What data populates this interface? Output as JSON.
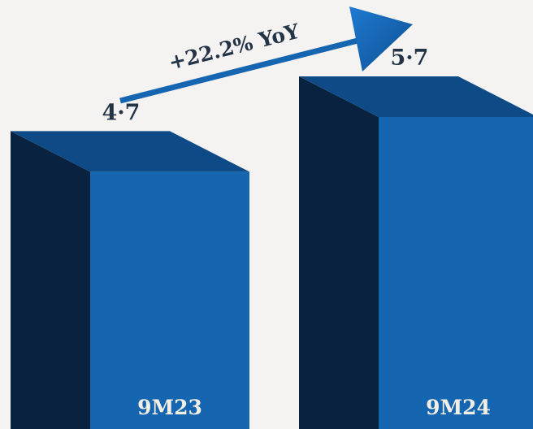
{
  "chart_data": {
    "type": "bar",
    "categories": [
      "9M23",
      "9M24"
    ],
    "values": [
      4.7,
      5.7
    ],
    "value_labels": [
      "4·7",
      "5·7"
    ],
    "annotation": "+22.2% YoY",
    "title": "",
    "xlabel": "",
    "ylabel": "",
    "ylim": [
      0,
      5.7
    ],
    "grid": false,
    "legend": "none"
  },
  "colors": {
    "background": "#f5f3f2",
    "bar_front": "#1565b0",
    "bar_side": "#08223f",
    "bar_top": "#0d4a86",
    "arrow": "#1565b0",
    "value_text": "#233447",
    "category_text": "#f3efe6"
  }
}
